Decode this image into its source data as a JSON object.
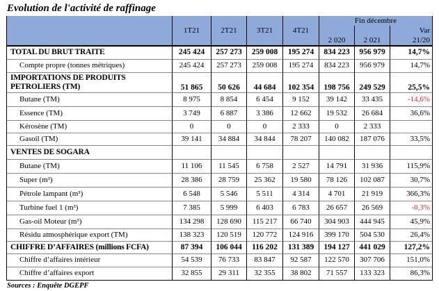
{
  "title": "Evolution de l'activité de raffinage",
  "source": "Sources : Enquête DGEPF",
  "header": {
    "quarters": [
      "1T21",
      "2T21",
      "3T21",
      "4T21"
    ],
    "group": "Fin décembre",
    "y2020": "2 020",
    "y2021": "2 021",
    "var1": "Var",
    "var2": "21/20"
  },
  "rows": [
    {
      "label": "TOTAL DU BRUT TRAITE",
      "v": [
        "245 424",
        "257 273",
        "259 008",
        "195 274",
        "834 223",
        "956 979",
        "14,7%"
      ]
    },
    {
      "label": "Compte propre (tonnes métriques)",
      "v": [
        "245 424",
        "257 273",
        "259 008",
        "195 274",
        "834 223",
        "956 979",
        "14,7%"
      ]
    },
    {
      "label": "IMPORTATIONS DE PRODUITS PETROLIERS (TM)",
      "v": [
        "51 865",
        "50 626",
        "44 684",
        "102 354",
        "198 756",
        "249 529",
        "25,5%"
      ]
    },
    {
      "label": "Butane (TM)",
      "v": [
        "8 975",
        "8 854",
        "6 454",
        "9 152",
        "39 142",
        "33 435",
        "-14,6%"
      ]
    },
    {
      "label": "Essence (TM)",
      "v": [
        "3 749",
        "6 887",
        "3 386",
        "12 662",
        "19 532",
        "26 684",
        "36,6%"
      ]
    },
    {
      "label": "Kérosène (TM)",
      "v": [
        "0",
        "0",
        "0",
        "2 333",
        "0",
        "2 333",
        ""
      ]
    },
    {
      "label": "Gasoil (TM)",
      "v": [
        "39 141",
        "34 884",
        "34 844",
        "78 207",
        "140 082",
        "187 076",
        "33,5%"
      ]
    },
    {
      "label": "VENTES DE SOGARA",
      "v": [
        "",
        "",
        "",
        "",
        "",
        "",
        ""
      ]
    },
    {
      "label": "Butane (TM)",
      "v": [
        "11 106",
        "11 545",
        "6 758",
        "2 527",
        "14 791",
        "31 936",
        "115,9%"
      ]
    },
    {
      "label": "Super (m³)",
      "v": [
        "28 386",
        "28 759",
        "25 362",
        "19 580",
        "78 126",
        "102 087",
        "30,7%"
      ]
    },
    {
      "label": "Pétrole lampant (m³)",
      "v": [
        "6 548",
        "5 546",
        "5 511",
        "4 314",
        "4 701",
        "21 919",
        "366,3%"
      ]
    },
    {
      "label": "Turbine fuel 1 (m³)",
      "v": [
        "7 385",
        "5 999",
        "6 403",
        "6 783",
        "26 657",
        "26 569",
        "-0,3%"
      ]
    },
    {
      "label": "Gas-oil Moteur (m³)",
      "v": [
        "134 298",
        "128 690",
        "115 217",
        "66 740",
        "304 903",
        "444 945",
        "45,9%"
      ]
    },
    {
      "label": "Résidu atmosphérique export (TM)",
      "v": [
        "138 323",
        "120 519",
        "120 772",
        "124 916",
        "399 170",
        "504 530",
        "26,4%"
      ]
    },
    {
      "label": "CHIFFRE D’AFFAIRES (millions FCFA)",
      "v": [
        "87 394",
        "106 044",
        "116 202",
        "131 389",
        "194 127",
        "441 029",
        "127,2%"
      ]
    },
    {
      "label": "Chiffre d’affaires intérieur",
      "v": [
        "54 539",
        "76 733",
        "83 847",
        "92 587",
        "122 570",
        "307 706",
        "151,0%"
      ]
    },
    {
      "label": "Chiffre d’affaires export",
      "v": [
        "32 855",
        "29 311",
        "32 355",
        "38 802",
        "71 557",
        "133 323",
        "86,3%"
      ]
    }
  ],
  "colors": {
    "header_bg": "#8eaadb",
    "negative": "#e8242c"
  }
}
